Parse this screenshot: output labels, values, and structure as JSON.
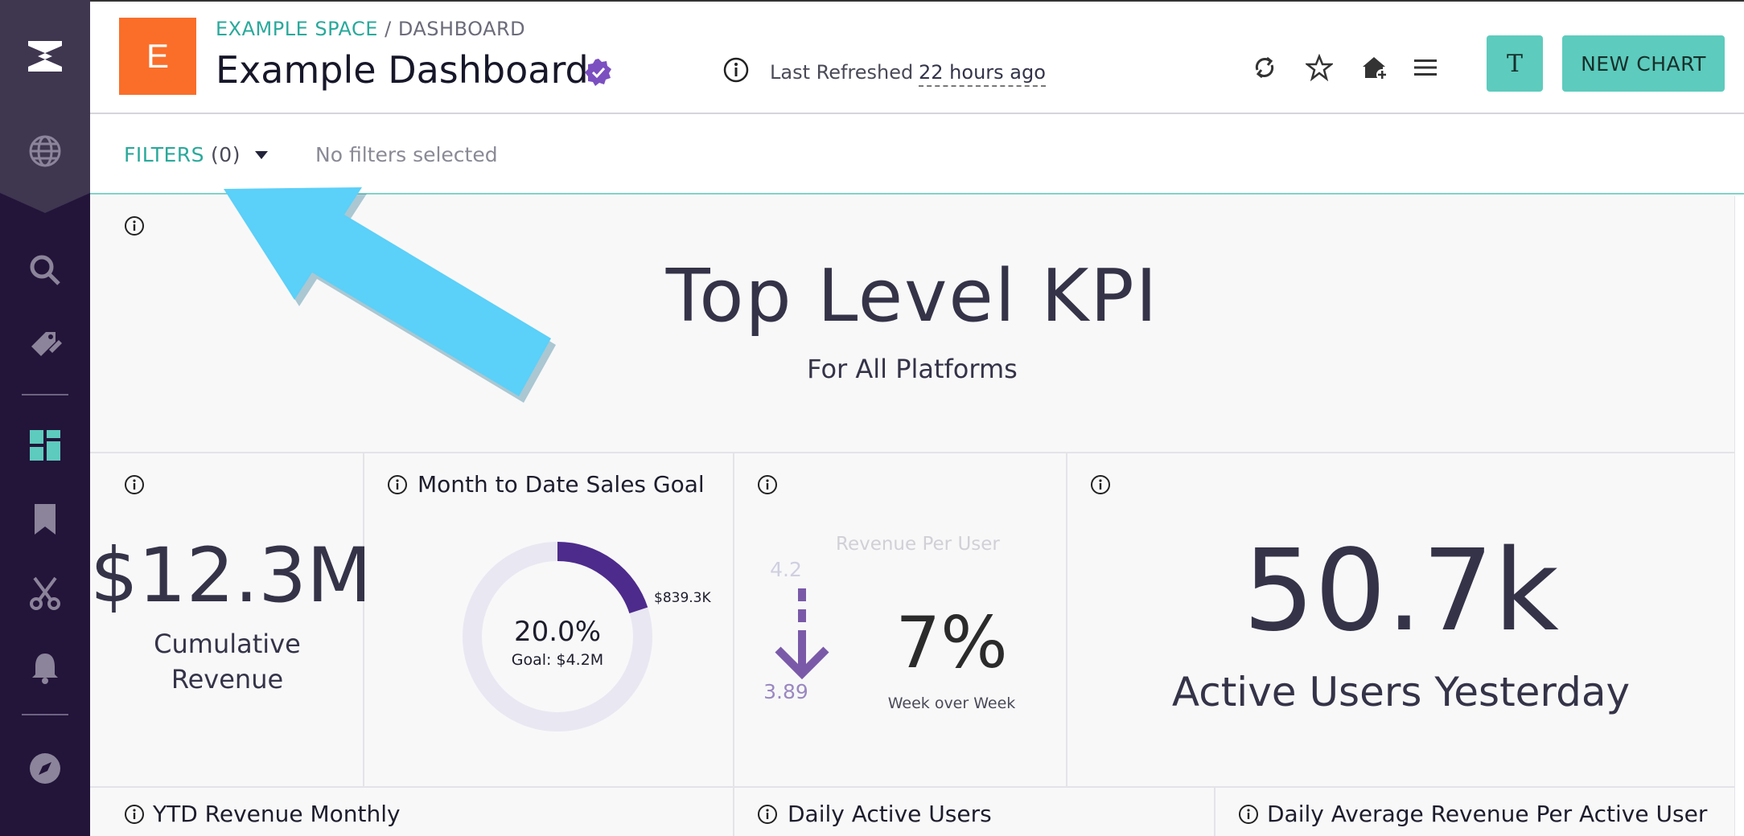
{
  "sidebar": {
    "items": [
      {
        "icon": "app-logo-icon"
      },
      {
        "icon": "globe-icon"
      },
      {
        "icon": "search-icon"
      },
      {
        "icon": "tag-edit-icon"
      },
      {
        "icon": "dashboard-icon"
      },
      {
        "icon": "bookmark-icon"
      },
      {
        "icon": "scissors-icon"
      },
      {
        "icon": "bell-icon"
      },
      {
        "icon": "compass-icon"
      }
    ],
    "active_color": "#5dcbbd"
  },
  "header": {
    "logo_letter": "E",
    "breadcrumb": {
      "space": "EXAMPLE SPACE",
      "separator": " / ",
      "page": "DASHBOARD"
    },
    "title": "Example Dashboard",
    "refresh_label": "Last Refreshed",
    "refresh_value": "22 hours ago",
    "avatar_letter": "T",
    "new_chart_label": "NEW CHART",
    "actions": [
      "refresh-icon",
      "star-icon",
      "home-add-icon",
      "menu-icon"
    ]
  },
  "filters": {
    "label": "FILTERS",
    "count": "(0)",
    "status": "No filters selected"
  },
  "kpi_header": {
    "title": "Top Level KPI",
    "subtitle": "For All Platforms"
  },
  "tiles": {
    "revenue": {
      "value": "$12.3M",
      "label_line1": "Cumulative",
      "label_line2": "Revenue"
    },
    "sales_goal": {
      "title": "Month to Date Sales Goal",
      "percent": "20.0%",
      "goal": "Goal: $4.2M",
      "current": "$839.3K",
      "progress_fraction": 0.2
    },
    "rpu": {
      "title": "Revenue Per User",
      "prev": "4.2",
      "curr": "3.89",
      "change": "7%",
      "change_label": "Week over Week"
    },
    "active_users": {
      "value": "50.7k",
      "label": "Active Users Yesterday"
    }
  },
  "bottom_tiles": [
    {
      "title": "YTD Revenue Monthly"
    },
    {
      "title": "Daily Active Users"
    },
    {
      "title": "Daily Average Revenue Per Active User"
    }
  ],
  "colors": {
    "brand_orange": "#fa6e2a",
    "teal": "#5dcbbd",
    "purple": "#4d2b8c",
    "sidebar": "#23143a",
    "arrow": "#5bd0f8"
  }
}
